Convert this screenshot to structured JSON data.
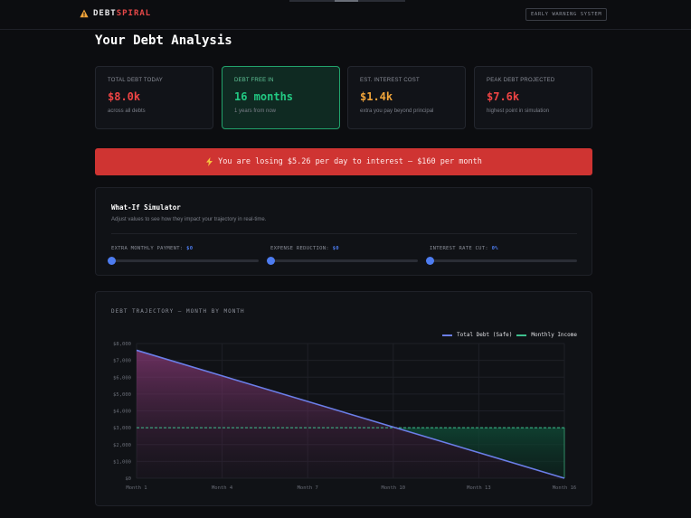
{
  "header": {
    "logo_icon": "warning-icon",
    "brand_part1": "DEBT",
    "brand_part2": "SPIRAL",
    "badge": "EARLY WARNING SYSTEM"
  },
  "page_title": "Your Debt Analysis",
  "cards": [
    {
      "label": "TOTAL DEBT TODAY",
      "value": "$8.0k",
      "sub": "across all debts",
      "color": "#ef4444"
    },
    {
      "label": "DEBT FREE IN",
      "value": "16 months",
      "sub": "1 years from now",
      "color": "#22c983"
    },
    {
      "label": "EST. INTEREST COST",
      "value": "$1.4k",
      "sub": "extra you pay beyond principal",
      "color": "#f0a43a"
    },
    {
      "label": "PEAK DEBT PROJECTED",
      "value": "$7.6k",
      "sub": "highest point in simulation",
      "color": "#ef4444"
    }
  ],
  "alert": {
    "icon": "lightning-icon",
    "text": "You are losing $5.26 per day to interest — $160 per month"
  },
  "simulator": {
    "title": "What-If Simulator",
    "description": "Adjust values to see how they impact your trajectory in real-time.",
    "sliders": [
      {
        "label": "EXTRA MONTHLY PAYMENT:",
        "value": "$0",
        "level": 0
      },
      {
        "label": "EXPENSE REDUCTION:",
        "value": "$0",
        "level": 0
      },
      {
        "label": "INTEREST RATE CUT:",
        "value": "0%",
        "level": 0
      }
    ]
  },
  "chart_panel": {
    "title": "DEBT TRAJECTORY — MONTH BY MONTH"
  },
  "chart_data": {
    "type": "line",
    "x": [
      1,
      16
    ],
    "x_ticks": [
      "Month 1",
      "Month 4",
      "Month 7",
      "Month 10",
      "Month 13",
      "Month 16"
    ],
    "y_ticks": [
      "$8,000",
      "$7,000",
      "$6,000",
      "$5,000",
      "$4,000",
      "$3,000",
      "$2,000",
      "$1,000",
      "$0"
    ],
    "ylim": [
      0,
      8000
    ],
    "xlim": [
      1,
      16
    ],
    "grid": true,
    "legend": "top-right",
    "series": [
      {
        "name": "Total Debt (Safe)",
        "x": [
          1,
          16
        ],
        "values": [
          7600,
          0
        ],
        "color": "#6b7ee8",
        "style": "solid"
      },
      {
        "name": "Monthly Income",
        "x": [
          1,
          16
        ],
        "values": [
          3000,
          3000
        ],
        "color": "#3ec08e",
        "style": "dashed"
      }
    ]
  }
}
